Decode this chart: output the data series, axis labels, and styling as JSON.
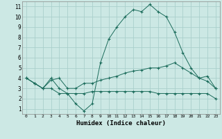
{
  "bg_color": "#cce8e4",
  "grid_color": "#aacfcb",
  "line_color": "#1a6b5a",
  "marker": "+",
  "xlabel": "Humidex (Indice chaleur)",
  "xlim": [
    -0.5,
    23.5
  ],
  "ylim": [
    0.5,
    11.5
  ],
  "xtick_labels": [
    "0",
    "1",
    "2",
    "3",
    "4",
    "5",
    "6",
    "7",
    "8",
    "9",
    "10",
    "11",
    "12",
    "13",
    "14",
    "15",
    "16",
    "17",
    "18",
    "19",
    "20",
    "21",
    "22",
    "23"
  ],
  "ytick_labels": [
    "1",
    "2",
    "3",
    "4",
    "5",
    "6",
    "7",
    "8",
    "9",
    "10",
    "11"
  ],
  "ytick_vals": [
    1,
    2,
    3,
    4,
    5,
    6,
    7,
    8,
    9,
    10,
    11
  ],
  "xtick_vals": [
    0,
    1,
    2,
    3,
    4,
    5,
    6,
    7,
    8,
    9,
    10,
    11,
    12,
    13,
    14,
    15,
    16,
    17,
    18,
    19,
    20,
    21,
    22,
    23
  ],
  "series": [
    [
      4.0,
      3.5,
      3.0,
      4.0,
      3.0,
      2.5,
      1.5,
      0.8,
      1.5,
      5.5,
      7.8,
      9.0,
      10.0,
      10.7,
      10.5,
      11.2,
      10.5,
      10.0,
      8.5,
      6.5,
      5.0,
      4.0,
      3.7,
      3.0
    ],
    [
      4.0,
      3.5,
      3.0,
      3.8,
      4.0,
      3.0,
      3.0,
      3.5,
      3.5,
      3.8,
      4.0,
      4.2,
      4.5,
      4.7,
      4.8,
      5.0,
      5.0,
      5.2,
      5.5,
      5.0,
      4.5,
      4.0,
      4.2,
      3.0
    ],
    [
      4.0,
      3.5,
      3.0,
      3.0,
      2.5,
      2.5,
      2.5,
      2.5,
      2.7,
      2.7,
      2.7,
      2.7,
      2.7,
      2.7,
      2.7,
      2.7,
      2.5,
      2.5,
      2.5,
      2.5,
      2.5,
      2.5,
      2.5,
      2.0
    ]
  ]
}
